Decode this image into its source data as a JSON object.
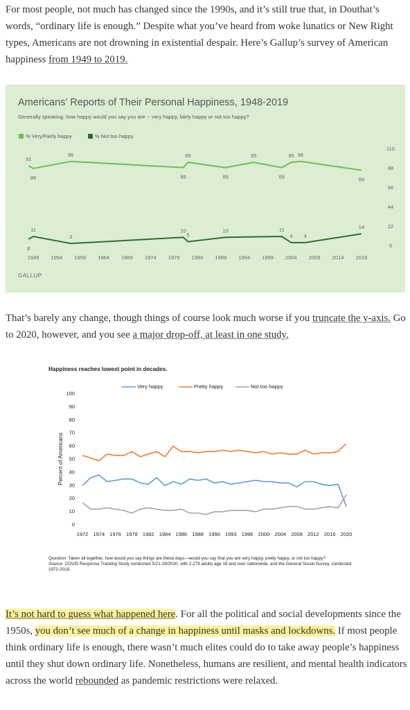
{
  "paragraphs": [
    [
      {
        "text": "For most people, not much has changed since the 1990s, and it’s still true that, in Douthat’s words, “ordinary life is enough.” Despite what you’ve heard from woke lunatics or New Right types, Americans are not drowning in existential despair. Here’s Gallup’s survey of American happiness "
      },
      {
        "text": "from 1949 to 2019.",
        "link": true
      }
    ],
    [
      {
        "text": "That’s barely any change, though things of course look much worse if you "
      },
      {
        "text": "truncate the y-axis.",
        "link": true
      },
      {
        "text": " Go to 2020, however, and you see "
      },
      {
        "text": "a major drop-off, at least in one study.",
        "link": true
      }
    ],
    [
      {
        "text": "It’s not hard to guess what happened here",
        "link": true,
        "highlight": true
      },
      {
        "text": ". For all the political and social developments since the 1950s, "
      },
      {
        "text": "you don’t see much of a change in happiness until masks and lockdowns.",
        "highlight": true
      },
      {
        "text": " If most people think ordinary life is enough, there wasn’t much elites could do to take away people’s happiness until they shut down ordinary life. Nonetheless, humans are resilient, and mental health indicators across the world "
      },
      {
        "text": "rebounded",
        "link": true
      },
      {
        "text": " as pandemic restrictions were relaxed."
      }
    ]
  ],
  "chart_data": [
    {
      "type": "line",
      "title": "Americans' Reports of Their Personal Happiness, 1948-2019",
      "subtitle": "Generally speaking, how happy would you say you are -- very happy, fairly happy or not too happy?",
      "background": "#dcedd3",
      "series": [
        {
          "name": "% Very/Fairly happy",
          "color": "#6cbf4f",
          "x": [
            1948,
            1949,
            1957,
            1981,
            1982,
            1990,
            1996,
            2002,
            2004,
            2006,
            2019
          ],
          "values": [
            91,
            88,
            96,
            89,
            95,
            89,
            95,
            89,
            95,
            96,
            86
          ]
        },
        {
          "name": "% Not too happy",
          "color": "#2e6b34",
          "x": [
            1948,
            1949,
            1957,
            1981,
            1982,
            1990,
            2002,
            2004,
            2007,
            2019
          ],
          "values": [
            8,
            11,
            3,
            10,
            5,
            10,
            11,
            4,
            4,
            14
          ]
        }
      ],
      "xlim": [
        1947,
        2021
      ],
      "xticks": [
        1949,
        1954,
        1959,
        1964,
        1969,
        1974,
        1979,
        1984,
        1989,
        1994,
        1999,
        2004,
        2009,
        2014,
        2019
      ],
      "ylim": [
        0,
        110
      ],
      "yticks": [
        0,
        22,
        44,
        66,
        88,
        110
      ],
      "source": "GALLUP"
    },
    {
      "type": "line",
      "title": "Happiness reaches lowest point in decades.",
      "categories": [
        "1972",
        null,
        "1974",
        null,
        "1976",
        null,
        "1978",
        null,
        "1982",
        null,
        "1984",
        null,
        "1986",
        null,
        "1988",
        null,
        "1990",
        null,
        "1993",
        null,
        "1996",
        null,
        "2000",
        null,
        "2004",
        null,
        "2008",
        null,
        "2012",
        null,
        "2016",
        null,
        "2020"
      ],
      "series": [
        {
          "name": "Very happy",
          "color": "#5b9bd5",
          "values": [
            30,
            36,
            38,
            33,
            34,
            35,
            35,
            32,
            31,
            36,
            30,
            33,
            31,
            35,
            34,
            35,
            32,
            33,
            31,
            32,
            33,
            34,
            33,
            33,
            32,
            32,
            29,
            33,
            33,
            31,
            30,
            31,
            14
          ]
        },
        {
          "name": "Pretty happy",
          "color": "#ed7d31",
          "values": [
            53,
            51,
            49,
            54,
            53,
            53,
            56,
            52,
            54,
            56,
            52,
            60,
            56,
            56,
            55,
            56,
            56,
            57,
            56,
            57,
            56,
            55,
            56,
            54,
            55,
            54,
            54,
            57,
            54,
            55,
            55,
            56,
            62
          ]
        },
        {
          "name": "Not too happy",
          "color": "#a5a5a5",
          "values": [
            17,
            12,
            12,
            13,
            12,
            11,
            9,
            12,
            13,
            12,
            11,
            11,
            12,
            9,
            9,
            8,
            10,
            10,
            11,
            11,
            11,
            10,
            12,
            12,
            13,
            14,
            14,
            12,
            12,
            13,
            14,
            13,
            23
          ]
        }
      ],
      "ylim": [
        0,
        100
      ],
      "yticks": [
        0,
        10,
        20,
        30,
        40,
        50,
        60,
        70,
        80,
        90,
        100
      ],
      "y_label": "Percent of Americans",
      "notes": [
        "Question: Taken all together, how would you say things are these days—would you say that you are very happy, pretty happy, or not too happy?",
        "Source: COVID Response Tracking Study conducted 5/21-29/2020, with 2,279 adults age 18 and over nationwide, and the General Social Survey, conducted 1972-2018."
      ]
    }
  ]
}
